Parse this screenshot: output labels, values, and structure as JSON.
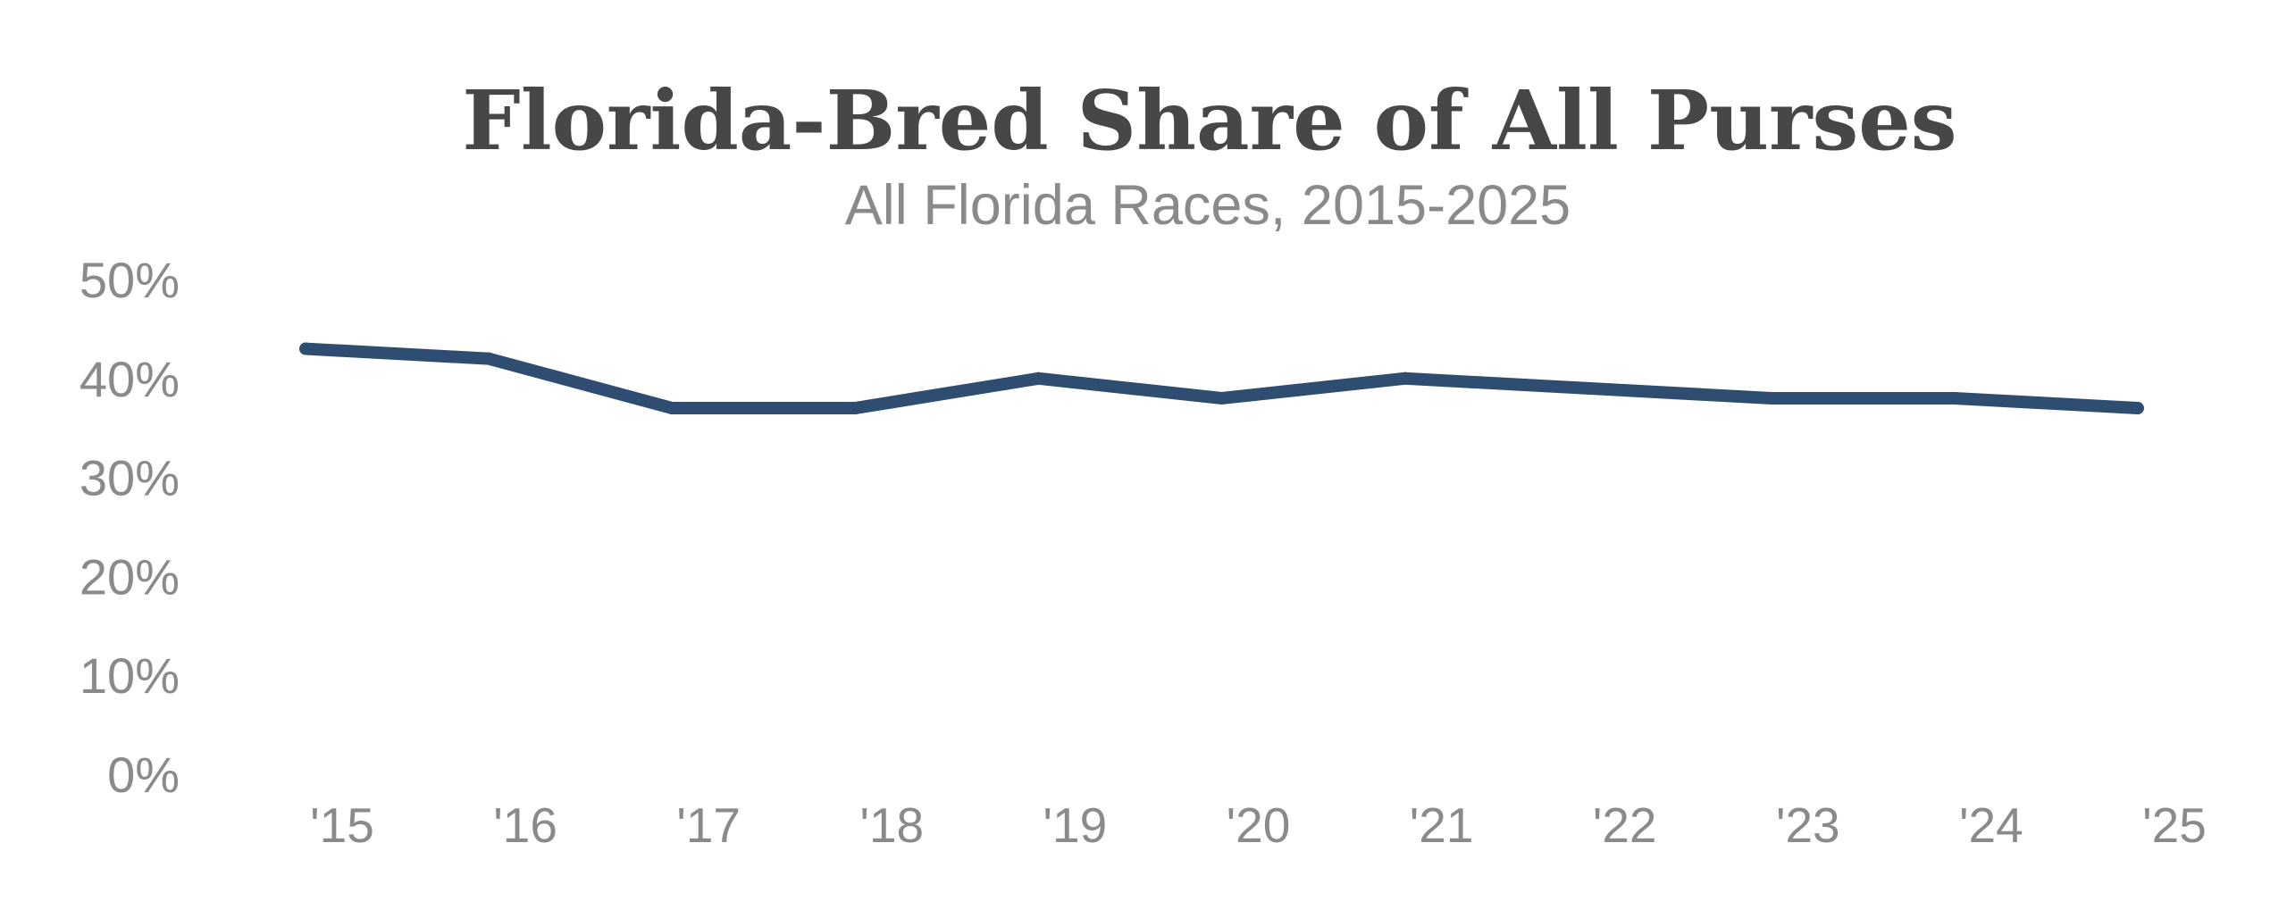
{
  "chart_data": {
    "type": "line",
    "title": "Florida-Bred Share of All Purses",
    "subtitle": "All Florida Races, 2015-2025",
    "xlabel": "",
    "ylabel": "",
    "categories": [
      "'15",
      "'16",
      "'17",
      "'18",
      "'19",
      "'20",
      "'21",
      "'22",
      "'23",
      "'24",
      "'25"
    ],
    "series": [
      {
        "name": "Florida-Bred Share of All Purses",
        "values": [
          43,
          42,
          37,
          37,
          40,
          38,
          40,
          39,
          38,
          38,
          37
        ],
        "color": "#2e4d70"
      }
    ],
    "ylim": [
      0,
      50
    ],
    "yticks": [
      0,
      10,
      20,
      30,
      40,
      50
    ],
    "ytick_labels": [
      "0%",
      "10%",
      "20%",
      "30%",
      "40%",
      "50%"
    ],
    "grid": false,
    "legend": "none"
  },
  "colors": {
    "title": "#474747",
    "labels": "#8a8a8a",
    "line": "#2e4d70",
    "background": "#ffffff"
  }
}
